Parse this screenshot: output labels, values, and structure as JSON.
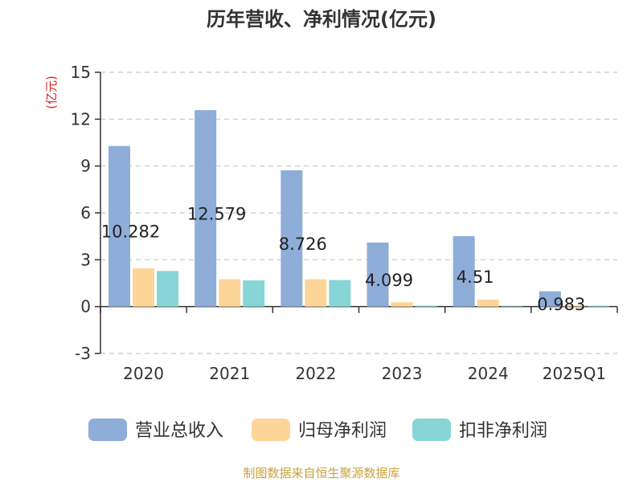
{
  "chart_data": {
    "type": "bar",
    "title": "历年营收、净利情况(亿元)",
    "ylabel": "(亿元)",
    "xlabel": "",
    "categories": [
      "2020",
      "2021",
      "2022",
      "2023",
      "2024",
      "2025Q1"
    ],
    "ylim": [
      -3,
      15
    ],
    "yticks": [
      -3,
      0,
      3,
      6,
      9,
      12,
      15
    ],
    "grid": true,
    "legend_position": "bottom",
    "series": [
      {
        "name": "营业总收入",
        "color": "#8eadd9",
        "values": [
          10.282,
          12.579,
          8.726,
          4.099,
          4.51,
          0.983
        ],
        "labels": [
          "10.282",
          "12.579",
          "8.726",
          "4.099",
          "4.51",
          "0.983"
        ]
      },
      {
        "name": "归母净利润",
        "color": "#fdd598",
        "values": [
          2.45,
          1.75,
          1.75,
          0.28,
          0.45,
          0.09
        ]
      },
      {
        "name": "扣非净利润",
        "color": "#88d5d8",
        "values": [
          2.28,
          1.68,
          1.7,
          0.05,
          0.02,
          0.05
        ]
      }
    ]
  },
  "source_text": "制图数据来自恒生聚源数据库"
}
